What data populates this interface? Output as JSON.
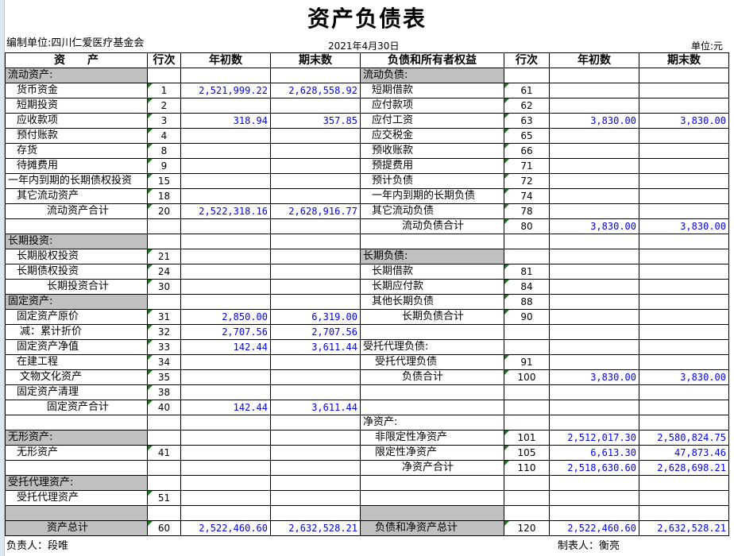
{
  "title": "资产负债表",
  "unit_org": "编制单位:四川仁爱医疗基金会",
  "date": "2021年4月30日",
  "unit": "单位:元",
  "headers": [
    "资　　产",
    "行次",
    "年初数",
    "期末数",
    "负债和所有者权益",
    "行次",
    "年初数",
    "期末数"
  ],
  "rows": [
    {
      "l": [
        "流动资产:",
        "",
        "",
        ""
      ],
      "lg": true,
      "r": [
        "流动负债:",
        "",
        "",
        ""
      ],
      "rg": true
    },
    {
      "l": [
        "货币资金",
        "1",
        "2,521,999.22",
        "2,628,558.92"
      ],
      "li": 1,
      "r": [
        "短期借款",
        "61",
        "",
        ""
      ],
      "ri": 1
    },
    {
      "l": [
        "短期投资",
        "2",
        "",
        ""
      ],
      "li": 1,
      "r": [
        "应付款项",
        "62",
        "",
        ""
      ],
      "ri": 1
    },
    {
      "l": [
        "应收款项",
        "3",
        "318.94",
        "357.85"
      ],
      "li": 1,
      "r": [
        "应付工资",
        "63",
        "3,830.00",
        "3,830.00"
      ],
      "ri": 1
    },
    {
      "l": [
        "预付账款",
        "4",
        "",
        ""
      ],
      "li": 1,
      "r": [
        "应交税金",
        "65",
        "",
        ""
      ],
      "ri": 1
    },
    {
      "l": [
        "存货",
        "8",
        "",
        ""
      ],
      "li": 1,
      "r": [
        "预收账款",
        "66",
        "",
        ""
      ],
      "ri": 1
    },
    {
      "l": [
        "待摊费用",
        "9",
        "",
        ""
      ],
      "li": 1,
      "r": [
        "预提费用",
        "71",
        "",
        ""
      ],
      "ri": 1
    },
    {
      "l": [
        "一年内到期的长期债权投资",
        "15",
        "",
        ""
      ],
      "r": [
        "预计负债",
        "72",
        "",
        ""
      ],
      "ri": 1
    },
    {
      "l": [
        "其它流动资产",
        "18",
        "",
        ""
      ],
      "li": 1,
      "r": [
        "一年内到期的长期负债",
        "74",
        "",
        ""
      ],
      "ri": 1
    },
    {
      "l": [
        "流动资产合计",
        "20",
        "2,522,318.16",
        "2,628,916.77"
      ],
      "li": 2,
      "r": [
        "其它流动负债",
        "78",
        "",
        ""
      ],
      "ri": 1
    },
    {
      "l": [
        "",
        "",
        "",
        ""
      ],
      "r": [
        "流动负债合计",
        "80",
        "3,830.00",
        "3,830.00"
      ],
      "ri": 2
    },
    {
      "l": [
        "长期投资:",
        "",
        "",
        ""
      ],
      "lg": true,
      "r": [
        "",
        "",
        "",
        ""
      ]
    },
    {
      "l": [
        "长期股权投资",
        "21",
        "",
        ""
      ],
      "li": 1,
      "r": [
        "长期负债:",
        "",
        "",
        ""
      ],
      "rg": true
    },
    {
      "l": [
        "长期债权投资",
        "24",
        "",
        ""
      ],
      "li": 1,
      "r": [
        "长期借款",
        "81",
        "",
        ""
      ],
      "ri": 1
    },
    {
      "l": [
        "长期投资合计",
        "30",
        "",
        ""
      ],
      "li": 2,
      "r": [
        "长期应付款",
        "84",
        "",
        ""
      ],
      "ri": 1
    },
    {
      "l": [
        "固定资产:",
        "",
        "",
        ""
      ],
      "lg": true,
      "r": [
        "其他长期负债",
        "88",
        "",
        ""
      ],
      "ri": 1
    },
    {
      "l": [
        "固定资产原价",
        "31",
        "2,850.00",
        "6,319.00"
      ],
      "li": 1,
      "r": [
        "长期负债合计",
        "90",
        "",
        ""
      ],
      "ri": 2
    },
    {
      "l": [
        "减：累计折价",
        "32",
        "2,707.56",
        "2,707.56"
      ],
      "li": 3,
      "r": [
        "",
        "",
        "",
        ""
      ]
    },
    {
      "l": [
        "固定资产净值",
        "33",
        "142.44",
        "3,611.44"
      ],
      "li": 1,
      "r": [
        "受托代理负债:",
        "",
        "",
        ""
      ]
    },
    {
      "l": [
        "在建工程",
        "34",
        "",
        ""
      ],
      "li": 1,
      "r": [
        "受托代理负债",
        "91",
        "",
        ""
      ],
      "ri": 3
    },
    {
      "l": [
        "文物文化资产",
        "35",
        "",
        ""
      ],
      "li": 3,
      "r": [
        "负债合计",
        "100",
        "3,830.00",
        "3,830.00"
      ],
      "ri": 2
    },
    {
      "l": [
        "固定资产清理",
        "38",
        "",
        ""
      ],
      "li": 1,
      "r": [
        "",
        "",
        "",
        ""
      ]
    },
    {
      "l": [
        "固定资产合计",
        "40",
        "142.44",
        "3,611.44"
      ],
      "li": 2,
      "r": [
        "",
        "",
        "",
        ""
      ]
    },
    {
      "l": [
        "",
        "",
        "",
        ""
      ],
      "r": [
        "净资产:",
        "",
        "",
        ""
      ]
    },
    {
      "l": [
        "无形资产:",
        "",
        "",
        ""
      ],
      "lg": true,
      "r": [
        "非限定性净资产",
        "101",
        "2,512,017.30",
        "2,580,824.75"
      ],
      "ri": 3
    },
    {
      "l": [
        "无形资产",
        "41",
        "",
        ""
      ],
      "li": 1,
      "r": [
        "限定性净资产",
        "105",
        "6,613.30",
        "47,873.46"
      ],
      "ri": 3
    },
    {
      "l": [
        "",
        "",
        "",
        ""
      ],
      "r": [
        "净资产合计",
        "110",
        "2,518,630.60",
        "2,628,698.21"
      ],
      "ri": 2
    },
    {
      "l": [
        "受托代理资产:",
        "",
        "",
        ""
      ],
      "lg": true,
      "r": [
        "",
        "",
        "",
        ""
      ]
    },
    {
      "l": [
        "受托代理资产",
        "51",
        "",
        ""
      ],
      "li": 1,
      "r": [
        "",
        "",
        "",
        ""
      ]
    },
    {
      "l": [
        "",
        "",
        "",
        ""
      ],
      "lg": true,
      "r": [
        "",
        "",
        "",
        ""
      ],
      "rg": true
    },
    {
      "l": [
        "资产总计",
        "60",
        "2,522,460.60",
        "2,632,528.21"
      ],
      "lg": true,
      "li": 2,
      "r": [
        "负债和净资产总计",
        "120",
        "2,522,460.60",
        "2,632,528.21"
      ],
      "rg": true,
      "ri": 3
    }
  ],
  "footer": {
    "responsible": "负责人：段唯",
    "preparer": "制表人：衡亮"
  },
  "colors": {
    "value_text": "#0000ff",
    "section_fill": "#c0c0c0",
    "comment_marker": "#1a7a1a"
  }
}
